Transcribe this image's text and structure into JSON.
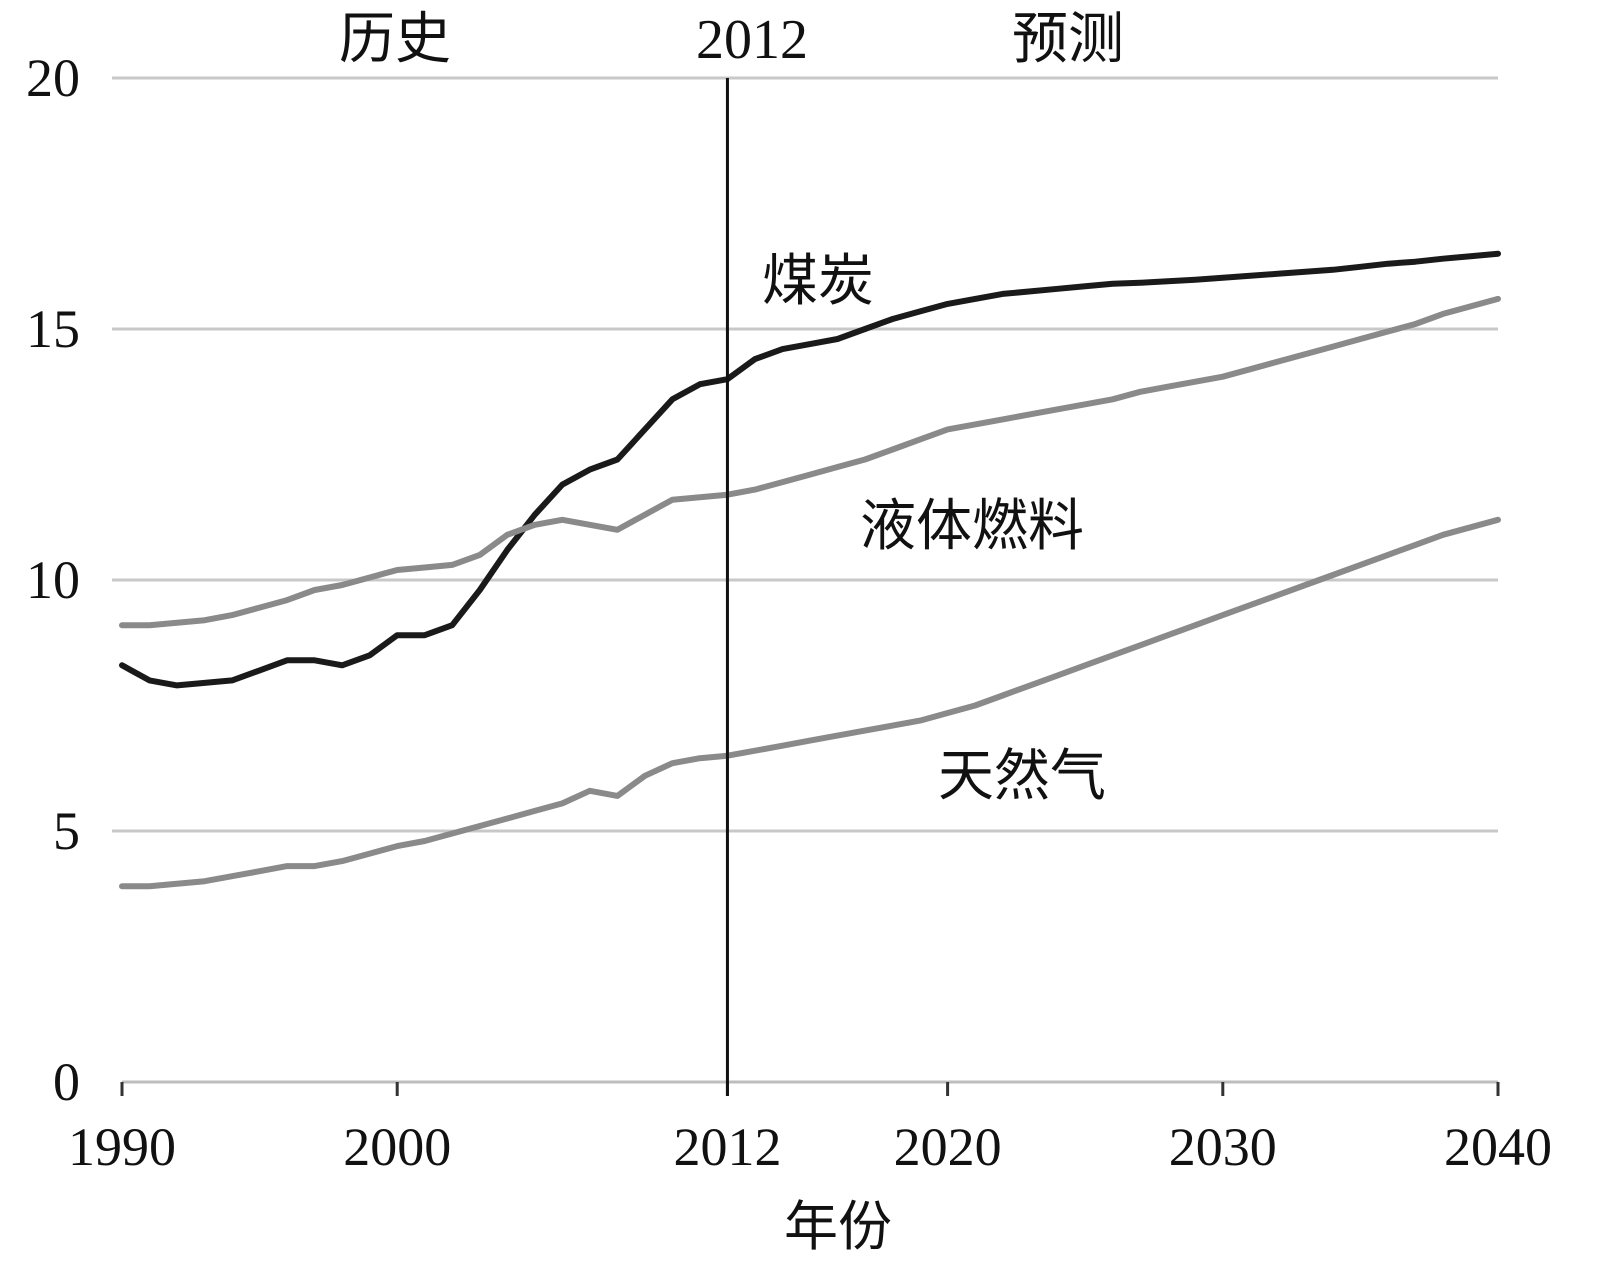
{
  "chart_data": {
    "type": "line",
    "title": "",
    "xlabel": "年份",
    "ylabel": "",
    "xlim": [
      1990,
      2040
    ],
    "ylim": [
      0,
      20
    ],
    "x_ticks": [
      "1990",
      "2000",
      "2012",
      "2020",
      "2030",
      "2040"
    ],
    "y_ticks": [
      "0",
      "5",
      "10",
      "15",
      "20"
    ],
    "grid": "horizontal",
    "divider_year": 2012,
    "region_labels": {
      "history": "历史",
      "divider": "2012",
      "forecast": "预测"
    },
    "series": [
      {
        "name": "煤炭",
        "color": "#1a1a1a",
        "x": [
          1990,
          1991,
          1992,
          1993,
          1994,
          1995,
          1996,
          1997,
          1998,
          1999,
          2000,
          2001,
          2002,
          2003,
          2004,
          2005,
          2006,
          2007,
          2008,
          2009,
          2010,
          2011,
          2012,
          2013,
          2014,
          2015,
          2016,
          2017,
          2018,
          2019,
          2020,
          2021,
          2022,
          2023,
          2024,
          2025,
          2026,
          2027,
          2028,
          2029,
          2030,
          2031,
          2032,
          2033,
          2034,
          2035,
          2036,
          2037,
          2038,
          2039,
          2040
        ],
        "y": [
          8.3,
          8.0,
          7.9,
          7.95,
          8.0,
          8.2,
          8.4,
          8.4,
          8.3,
          8.5,
          8.9,
          8.9,
          9.1,
          9.8,
          10.6,
          11.3,
          11.9,
          12.2,
          12.4,
          13.0,
          13.6,
          13.9,
          14.0,
          14.4,
          14.6,
          14.7,
          14.8,
          15.0,
          15.2,
          15.35,
          15.5,
          15.6,
          15.7,
          15.75,
          15.8,
          15.85,
          15.9,
          15.92,
          15.95,
          15.98,
          16.02,
          16.06,
          16.1,
          16.14,
          16.18,
          16.24,
          16.3,
          16.34,
          16.4,
          16.45,
          16.5
        ]
      },
      {
        "name": "液体燃料",
        "color": "#8a8a8a",
        "x": [
          1990,
          1991,
          1992,
          1993,
          1994,
          1995,
          1996,
          1997,
          1998,
          1999,
          2000,
          2001,
          2002,
          2003,
          2004,
          2005,
          2006,
          2007,
          2008,
          2009,
          2010,
          2011,
          2012,
          2013,
          2014,
          2015,
          2016,
          2017,
          2018,
          2019,
          2020,
          2021,
          2022,
          2023,
          2024,
          2025,
          2026,
          2027,
          2028,
          2029,
          2030,
          2031,
          2032,
          2033,
          2034,
          2035,
          2036,
          2037,
          2038,
          2039,
          2040
        ],
        "y": [
          9.1,
          9.1,
          9.15,
          9.2,
          9.3,
          9.45,
          9.6,
          9.8,
          9.9,
          10.05,
          10.2,
          10.25,
          10.3,
          10.5,
          10.9,
          11.1,
          11.2,
          11.1,
          11.0,
          11.3,
          11.6,
          11.65,
          11.7,
          11.8,
          11.95,
          12.1,
          12.25,
          12.4,
          12.6,
          12.8,
          13.0,
          13.1,
          13.2,
          13.3,
          13.4,
          13.5,
          13.6,
          13.75,
          13.85,
          13.95,
          14.05,
          14.2,
          14.35,
          14.5,
          14.65,
          14.8,
          14.95,
          15.1,
          15.3,
          15.45,
          15.6
        ]
      },
      {
        "name": "天然气",
        "color": "#8a8a8a",
        "x": [
          1990,
          1991,
          1992,
          1993,
          1994,
          1995,
          1996,
          1997,
          1998,
          1999,
          2000,
          2001,
          2002,
          2003,
          2004,
          2005,
          2006,
          2007,
          2008,
          2009,
          2010,
          2011,
          2012,
          2013,
          2014,
          2015,
          2016,
          2017,
          2018,
          2019,
          2020,
          2021,
          2022,
          2023,
          2024,
          2025,
          2026,
          2027,
          2028,
          2029,
          2030,
          2031,
          2032,
          2033,
          2034,
          2035,
          2036,
          2037,
          2038,
          2039,
          2040
        ],
        "y": [
          3.9,
          3.9,
          3.95,
          4.0,
          4.1,
          4.2,
          4.3,
          4.3,
          4.4,
          4.55,
          4.7,
          4.8,
          4.95,
          5.1,
          5.25,
          5.4,
          5.55,
          5.8,
          5.7,
          6.1,
          6.35,
          6.45,
          6.5,
          6.6,
          6.7,
          6.8,
          6.9,
          7.0,
          7.1,
          7.2,
          7.35,
          7.5,
          7.7,
          7.9,
          8.1,
          8.3,
          8.5,
          8.7,
          8.9,
          9.1,
          9.3,
          9.5,
          9.7,
          9.9,
          10.1,
          10.3,
          10.5,
          10.7,
          10.9,
          11.05,
          11.2
        ]
      }
    ]
  }
}
